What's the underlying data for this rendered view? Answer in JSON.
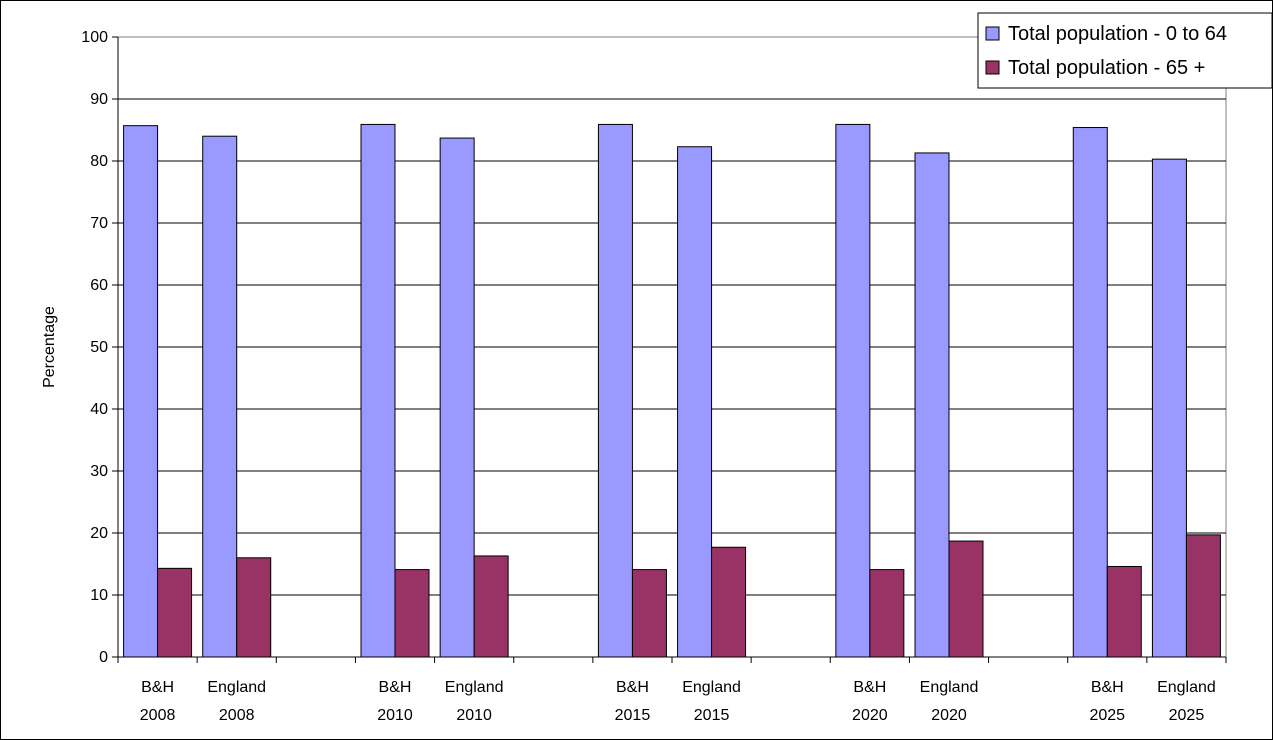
{
  "chart_data": {
    "type": "bar",
    "ylabel": "Percentage",
    "ylim": [
      0,
      100
    ],
    "yticks": [
      0,
      10,
      20,
      30,
      40,
      50,
      60,
      70,
      80,
      90,
      100
    ],
    "grid": true,
    "legend_position": "top-right",
    "categories": [
      [
        "B&H",
        "2008"
      ],
      [
        "England",
        "2008"
      ],
      [
        "",
        ""
      ],
      [
        "B&H",
        "2010"
      ],
      [
        "England",
        "2010"
      ],
      [
        "",
        ""
      ],
      [
        "B&H",
        "2015"
      ],
      [
        "England",
        "2015"
      ],
      [
        "",
        ""
      ],
      [
        "B&H",
        "2020"
      ],
      [
        "England",
        "2020"
      ],
      [
        "",
        ""
      ],
      [
        "B&H",
        "2025"
      ],
      [
        "England",
        "2025"
      ]
    ],
    "series": [
      {
        "name": "Total population - 0 to 64",
        "color": "#9999ff",
        "values": [
          85.7,
          84.0,
          null,
          85.9,
          83.7,
          null,
          85.9,
          82.3,
          null,
          85.9,
          81.3,
          null,
          85.4,
          80.3
        ]
      },
      {
        "name": "Total population - 65 +",
        "color": "#993366",
        "values": [
          14.3,
          16.0,
          null,
          14.1,
          16.3,
          null,
          14.1,
          17.7,
          null,
          14.1,
          18.7,
          null,
          14.6,
          19.7
        ]
      }
    ]
  }
}
